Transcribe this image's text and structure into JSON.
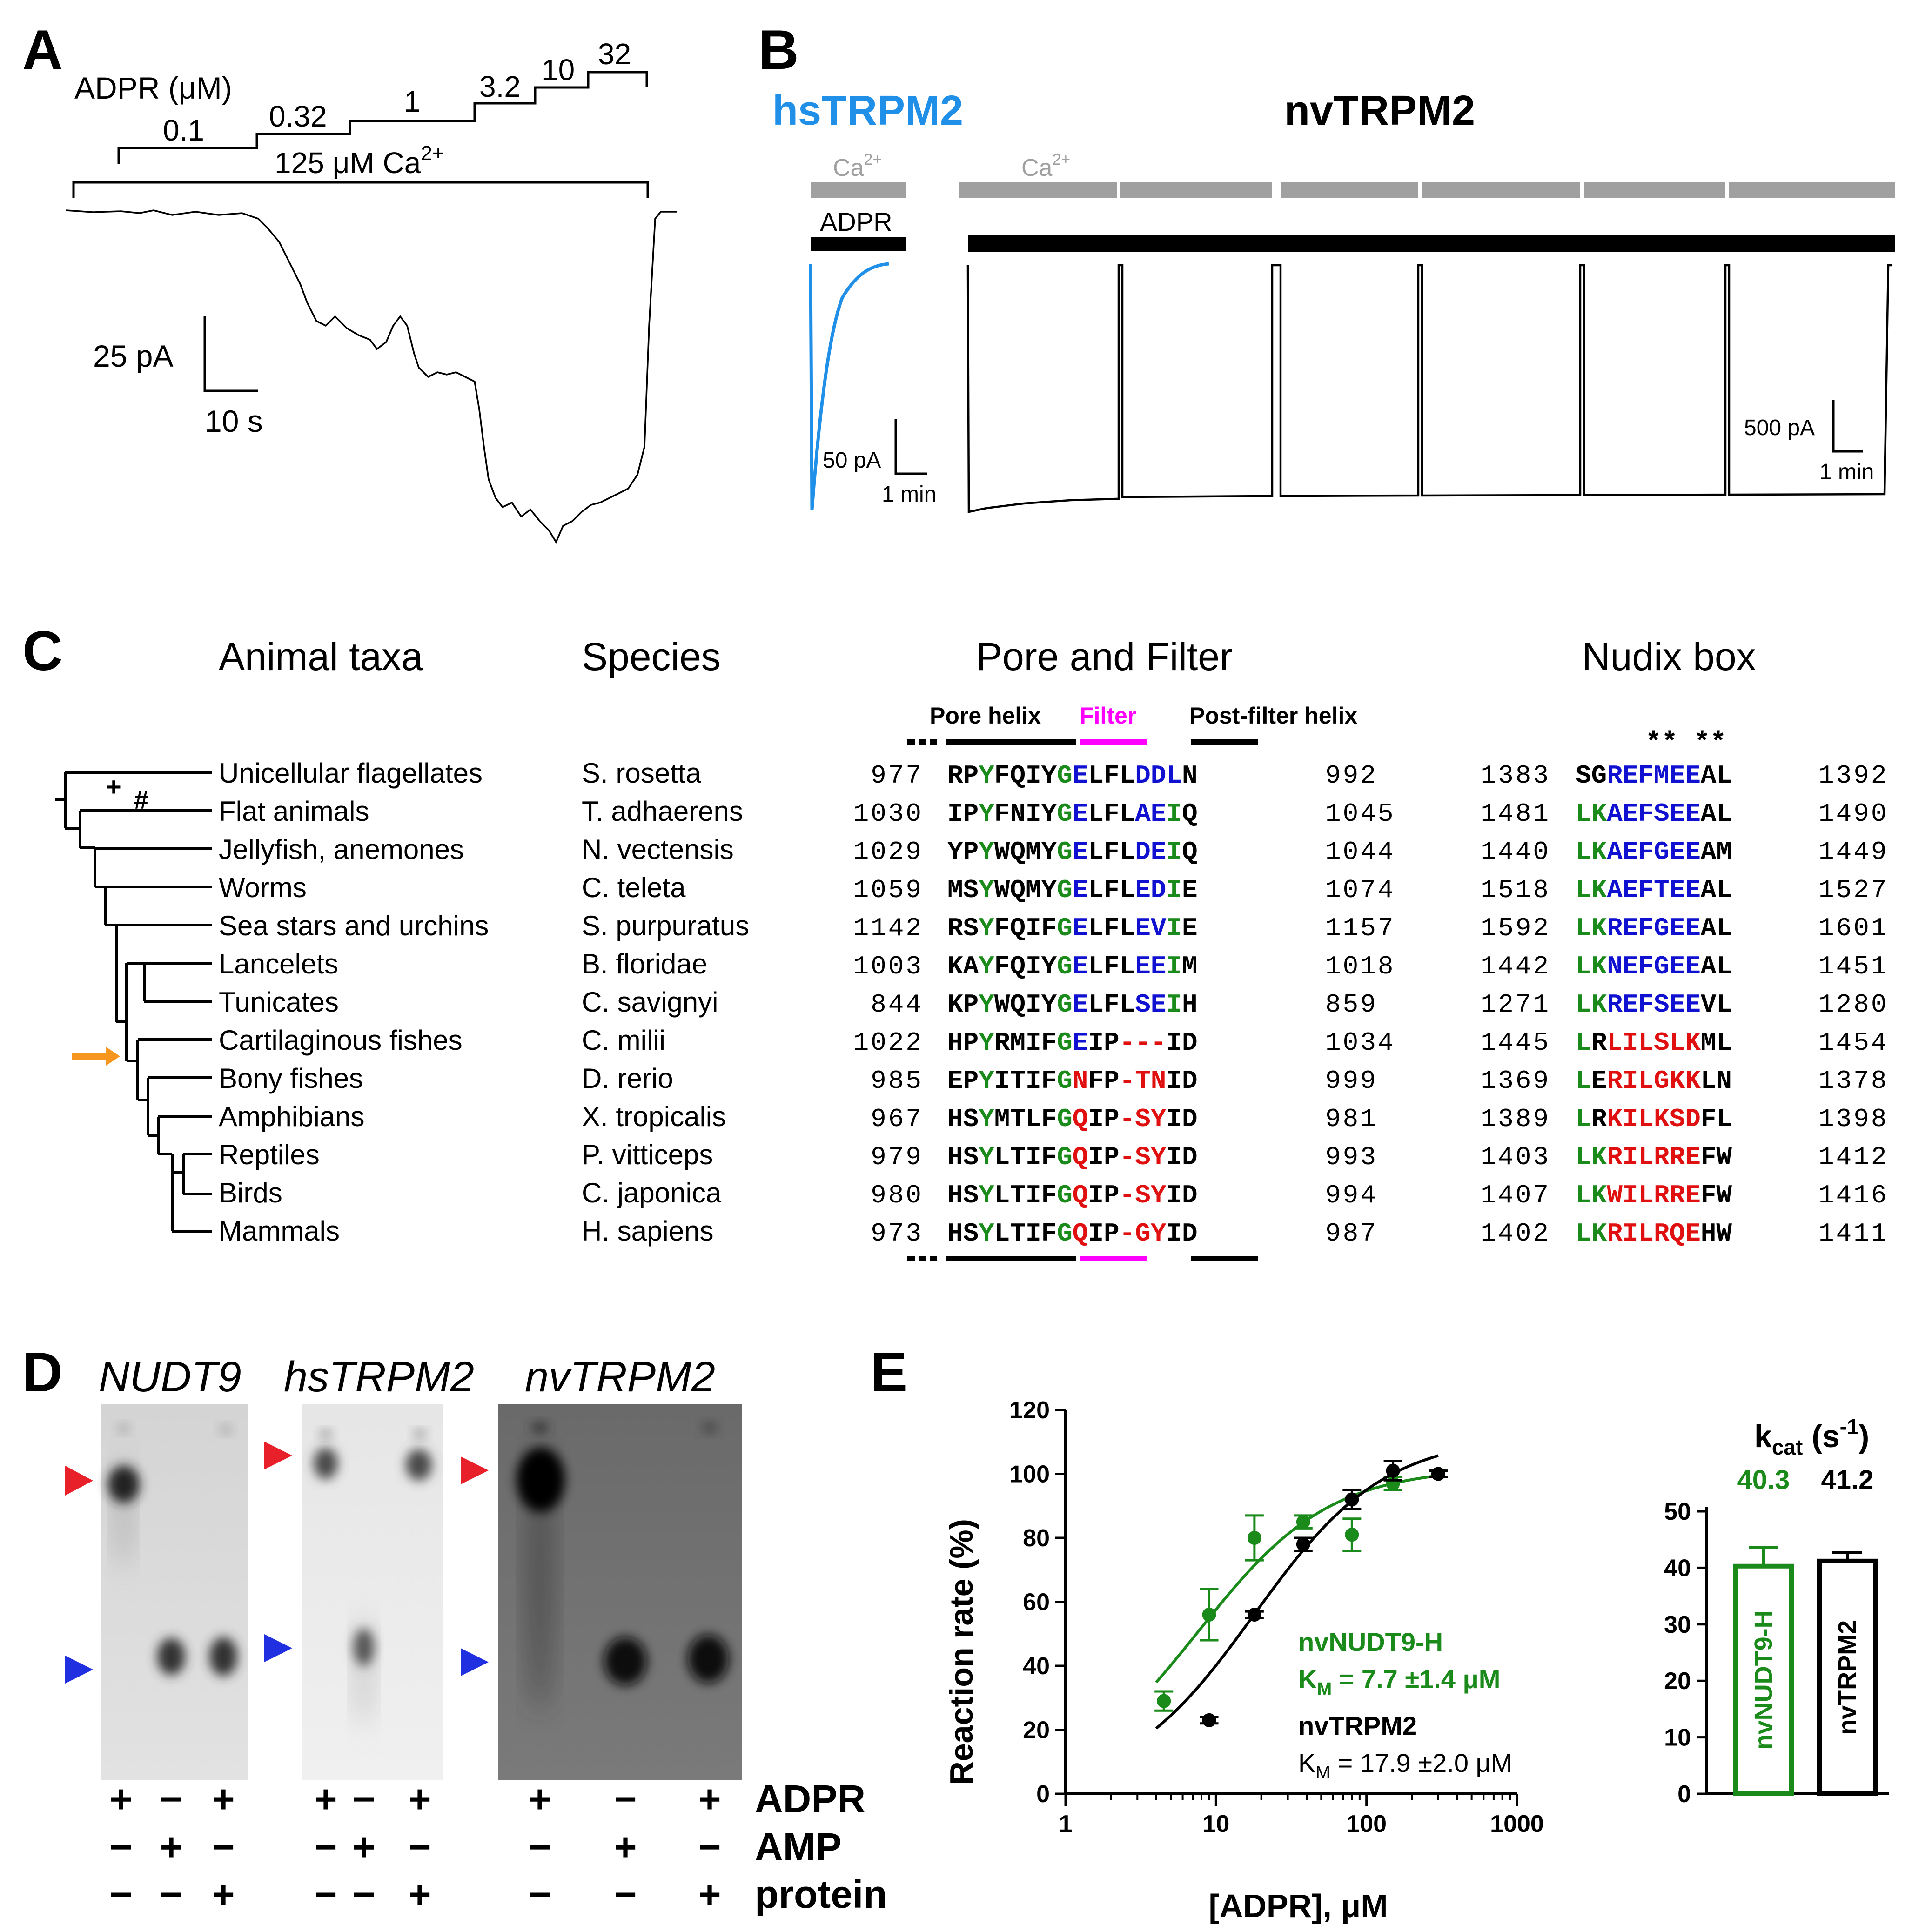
{
  "colors": {
    "hs_blue": "#1f8fe8",
    "green": "#1a8a1a",
    "blue": "#1010d0",
    "red": "#e01010",
    "magenta": "#ff00ff",
    "gray_bar": "#a0a0a0",
    "orange": "#f7961e",
    "tlc_red": "#e8202a",
    "tlc_blue": "#2030e0"
  },
  "panelA": {
    "label": "A",
    "adpr_label": "ADPR (μM)",
    "steps": [
      "0.1",
      "0.32",
      "1",
      "3.2",
      "10",
      "32"
    ],
    "ca_label": "125 μM Ca",
    "ca_sup": "2+",
    "scale_y": "25 pA",
    "scale_x": "10 s"
  },
  "panelB": {
    "label": "B",
    "hs_title": "hsTRPM2",
    "nv_title": "nvTRPM2",
    "ca_label": "Ca",
    "ca_sup": "2+",
    "adpr_label": "ADPR",
    "hs_scale_y": "50 pA",
    "hs_scale_x": "1 min",
    "nv_scale_y": "500 pA",
    "nv_scale_x": "1 min"
  },
  "panelC": {
    "label": "C",
    "headers": {
      "taxa": "Animal taxa",
      "species": "Species",
      "pore": "Pore and Filter",
      "nudix": "Nudix box"
    },
    "sub_labels": {
      "pore_helix": "Pore helix",
      "filter": "Filter",
      "post_filter": "Post-filter helix"
    },
    "tree_marks": {
      "plus": "+",
      "hash": "#"
    },
    "stars": "** **",
    "rows": [
      {
        "taxon": "Unicellular flagellates",
        "species": "S. rosetta",
        "p_start": "977",
        "p_seq": "RPYFQIYGELFLDDLN",
        "p_end": "992",
        "n_start": "1383",
        "n_seq": "SGREFMEEAL",
        "n_end": "1392"
      },
      {
        "taxon": "Flat animals",
        "species": "T. adhaerens",
        "p_start": "1030",
        "p_seq": "IPYFNIYGELFLAEIQ",
        "p_end": "1045",
        "n_start": "1481",
        "n_seq": "LKAEFSEEAL",
        "n_end": "1490"
      },
      {
        "taxon": "Jellyfish, anemones",
        "species": "N. vectensis",
        "p_start": "1029",
        "p_seq": "YPYWQMYGELFLDEIQ",
        "p_end": "1044",
        "n_start": "1440",
        "n_seq": "LKAEFGEEAM",
        "n_end": "1449"
      },
      {
        "taxon": "Worms",
        "species": "C. teleta",
        "p_start": "1059",
        "p_seq": "MSYWQMYGELFLEDIE",
        "p_end": "1074",
        "n_start": "1518",
        "n_seq": "LKAEFTEEAL",
        "n_end": "1527"
      },
      {
        "taxon": "Sea stars and urchins",
        "species": "S. purpuratus",
        "p_start": "1142",
        "p_seq": "RSYFQIFGELFLEVIE",
        "p_end": "1157",
        "n_start": "1592",
        "n_seq": "LKREFGEEAL",
        "n_end": "1601"
      },
      {
        "taxon": "Lancelets",
        "species": "B. floridae",
        "p_start": "1003",
        "p_seq": "KAYFQIYGELFLEEIM",
        "p_end": "1018",
        "n_start": "1442",
        "n_seq": "LKNEFGEEAL",
        "n_end": "1451"
      },
      {
        "taxon": "Tunicates",
        "species": "C. savignyi",
        "p_start": "844",
        "p_seq": "KPYWQIYGELFLSEIH",
        "p_end": "859",
        "n_start": "1271",
        "n_seq": "LKREFSEEVL",
        "n_end": "1280"
      },
      {
        "taxon": "Cartilaginous fishes",
        "species": "C. milii",
        "p_start": "1022",
        "p_seq": "HPYRMIFGEIP---ID",
        "p_end": "1034",
        "n_start": "1445",
        "n_seq": "LRLILSLKML",
        "n_end": "1454"
      },
      {
        "taxon": "Bony fishes",
        "species": "D. rerio",
        "p_start": "985",
        "p_seq": "EPYITIFGNFP-TNID",
        "p_end": "999",
        "n_start": "1369",
        "n_seq": "LERILGKKLN",
        "n_end": "1378"
      },
      {
        "taxon": "Amphibians",
        "species": "X. tropicalis",
        "p_start": "967",
        "p_seq": "HSYMTLFGQIP-SYID",
        "p_end": "981",
        "n_start": "1389",
        "n_seq": "LRKILKSDFL",
        "n_end": "1398"
      },
      {
        "taxon": "Reptiles",
        "species": "P. vitticeps",
        "p_start": "979",
        "p_seq": "HSYLTIFGQIP-SYID",
        "p_end": "993",
        "n_start": "1403",
        "n_seq": "LKRILRREFW",
        "n_end": "1412"
      },
      {
        "taxon": "Birds",
        "species": "C. japonica",
        "p_start": "980",
        "p_seq": "HSYLTIFGQIP-SYID",
        "p_end": "994",
        "n_start": "1407",
        "n_seq": "LKWILRREFW",
        "n_end": "1416"
      },
      {
        "taxon": "Mammals",
        "species": "H. sapiens",
        "p_start": "973",
        "p_seq": "HSYLTIFGQIP-GYID",
        "p_end": "987",
        "n_start": "1402",
        "n_seq": "LKRILRQEHW",
        "n_end": "1411"
      }
    ],
    "p_colors": [
      "kkgkkkkgbkkkbbbk",
      "kkgkkkkgbkkkbbgk",
      "kkgkkkkgbkkkbbgk",
      "kkgkkkkgbkkkbbgk",
      "kkgkkkkgbkkkbbgk",
      "kkgkkkkgbkkkbbgk",
      "kkgkkkkgbkkkbbgk",
      "kkgkkkkgbkkrrrkk",
      "kkgkkkkgrkkrrrkk",
      "kkgkkkkgrkkrrrkk",
      "kkgkkkkgrkkrrrkk",
      "kkgkkkkgrkkrrrkk",
      "kkgkkkkgrkkrrrkk"
    ],
    "n_colors": [
      "kkbbbbbbkk",
      "ggbbbbbbkk",
      "ggbbbbbbkk",
      "ggbbbbbbkk",
      "ggbbbbbbkk",
      "ggbbbbbbkk",
      "ggbbbbbbkk",
      "gkrrrrrrkk",
      "gkrrrrrrkk",
      "gkrrrrrrkk",
      "ggrrrrrrkk",
      "ggrrrrrrkk",
      "ggrrrrrrkk"
    ]
  },
  "panelD": {
    "label": "D",
    "gel_titles": [
      "NUDT9",
      "hsTRPM2",
      "nvTRPM2"
    ],
    "row_labels": [
      "ADPR",
      "AMP",
      "protein"
    ],
    "signs": [
      [
        "+",
        "−",
        "+"
      ],
      [
        "−",
        "+",
        "−"
      ],
      [
        "−",
        "−",
        "+"
      ]
    ]
  },
  "panelE": {
    "label": "E",
    "ylabel": "Reaction rate (%)",
    "xlabel": "[ADPR], μM",
    "legend_green_name": "nvNUDT9-H",
    "legend_green_km": "K",
    "legend_green_km_sub": "M",
    "legend_green_km_val": " = 7.7 ±1.4 μM",
    "legend_black_name": "nvTRPM2",
    "legend_black_km": "K",
    "legend_black_km_sub": "M",
    "legend_black_km_val": " = 17.9 ±2.0 μM",
    "kcat_title": "k",
    "kcat_sub": "cat",
    "kcat_unit": " (s",
    "kcat_unit_sup": "-1",
    "kcat_close": ")"
  },
  "chart_data": [
    {
      "type": "scatter",
      "title": "",
      "xlabel": "[ADPR], μM",
      "ylabel": "Reaction rate (%)",
      "xscale": "log",
      "xlim": [
        1,
        1000
      ],
      "ylim": [
        0,
        120
      ],
      "xticks": [
        "1",
        "10",
        "100",
        "1000"
      ],
      "yticks": [
        "0",
        "20",
        "40",
        "60",
        "80",
        "100",
        "120"
      ],
      "series": [
        {
          "name": "nvNUDT9-H",
          "color": "#1a8a1a",
          "x": [
            4.5,
            9,
            18,
            38,
            80,
            150,
            300
          ],
          "y": [
            29,
            56,
            80,
            85,
            81,
            97,
            100
          ],
          "err": [
            3,
            8,
            7,
            2,
            5,
            2,
            1
          ],
          "km": 7.7
        },
        {
          "name": "nvTRPM2",
          "color": "#000000",
          "x": [
            9,
            18,
            38,
            80,
            150,
            300
          ],
          "y": [
            23,
            56,
            78,
            92,
            101,
            100
          ],
          "err": [
            1,
            1,
            2,
            3,
            3,
            1
          ],
          "km": 17.9
        }
      ]
    },
    {
      "type": "bar",
      "title": "kcat (s-1)",
      "categories": [
        "nvNUDT9-H",
        "nvTRPM2"
      ],
      "values": [
        40.3,
        41.2
      ],
      "errors": [
        3.3,
        1.5
      ],
      "value_labels": [
        "40.3",
        "41.2"
      ],
      "yticks": [
        "0",
        "10",
        "20",
        "30",
        "40",
        "50"
      ],
      "ylim": [
        0,
        50
      ]
    }
  ]
}
